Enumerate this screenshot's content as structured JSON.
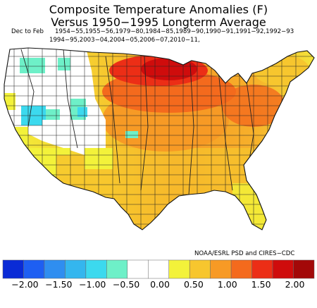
{
  "title_line1": "Composite Temperature Anomalies (F)",
  "title_line2": "Versus 1950−1995 Longterm Average",
  "season": "Dec to Feb",
  "years_line1": "1954−55,1955−56,1979−80,1984−85,1989−90,1990−91,1991−92,1992−93",
  "years_line2": "1994−95,2003−04,2004−05,2006−07,2010−11,",
  "credit": "NOAA/ESRL PSD and CIRES−CDC",
  "legend": {
    "colors": [
      "#0a2bd6",
      "#1e5ff2",
      "#2f8ef0",
      "#34b6ee",
      "#3cd9ee",
      "#6ef0c8",
      "#ffffff",
      "#ffffff",
      "#f3f23a",
      "#f7c62e",
      "#f79a25",
      "#f46a1d",
      "#ec2e16",
      "#cf0c0c",
      "#a30808"
    ],
    "labels": [
      "−2.00",
      "−1.50",
      "−1.00",
      "−0.50",
      "0.00",
      "0.50",
      "1.00",
      "1.50",
      "2.00"
    ]
  }
}
